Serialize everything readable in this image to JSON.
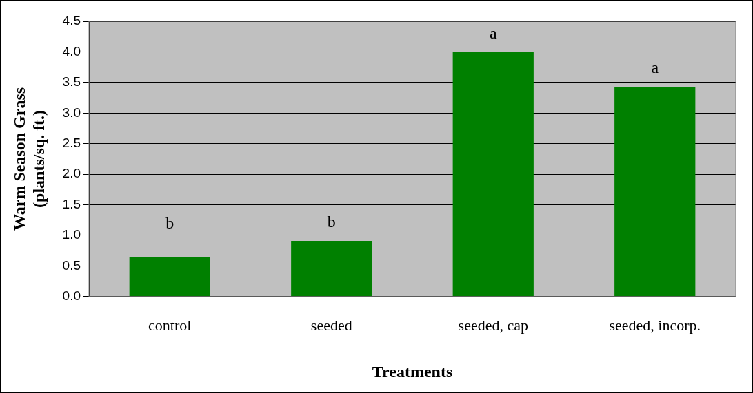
{
  "chart_data": {
    "type": "bar",
    "xlabel": "Treatments",
    "ylabel": "Warm Season Grass (plants/sq. ft.)",
    "categories": [
      "control",
      "seeded",
      "seeded, cap",
      "seeded, incorp."
    ],
    "values": [
      0.64,
      0.91,
      4.0,
      3.43
    ],
    "color": "#008000",
    "ylim": [
      0,
      4.5
    ],
    "yticks": [
      {
        "value": 0,
        "label": "0.0"
      },
      {
        "value": 0.5,
        "label": "0.5"
      },
      {
        "value": 1,
        "label": "1.0"
      },
      {
        "value": 1.5,
        "label": "1.5"
      },
      {
        "value": 2,
        "label": "2.0"
      },
      {
        "value": 2.5,
        "label": "2.5"
      },
      {
        "value": 3,
        "label": "3.0"
      },
      {
        "value": 3.5,
        "label": "3.5"
      },
      {
        "value": 4,
        "label": "4.0"
      },
      {
        "value": 4.5,
        "label": "4.5"
      }
    ],
    "grid": "y",
    "legend": false,
    "annotations": [
      "b",
      "b",
      "a",
      "a"
    ]
  }
}
